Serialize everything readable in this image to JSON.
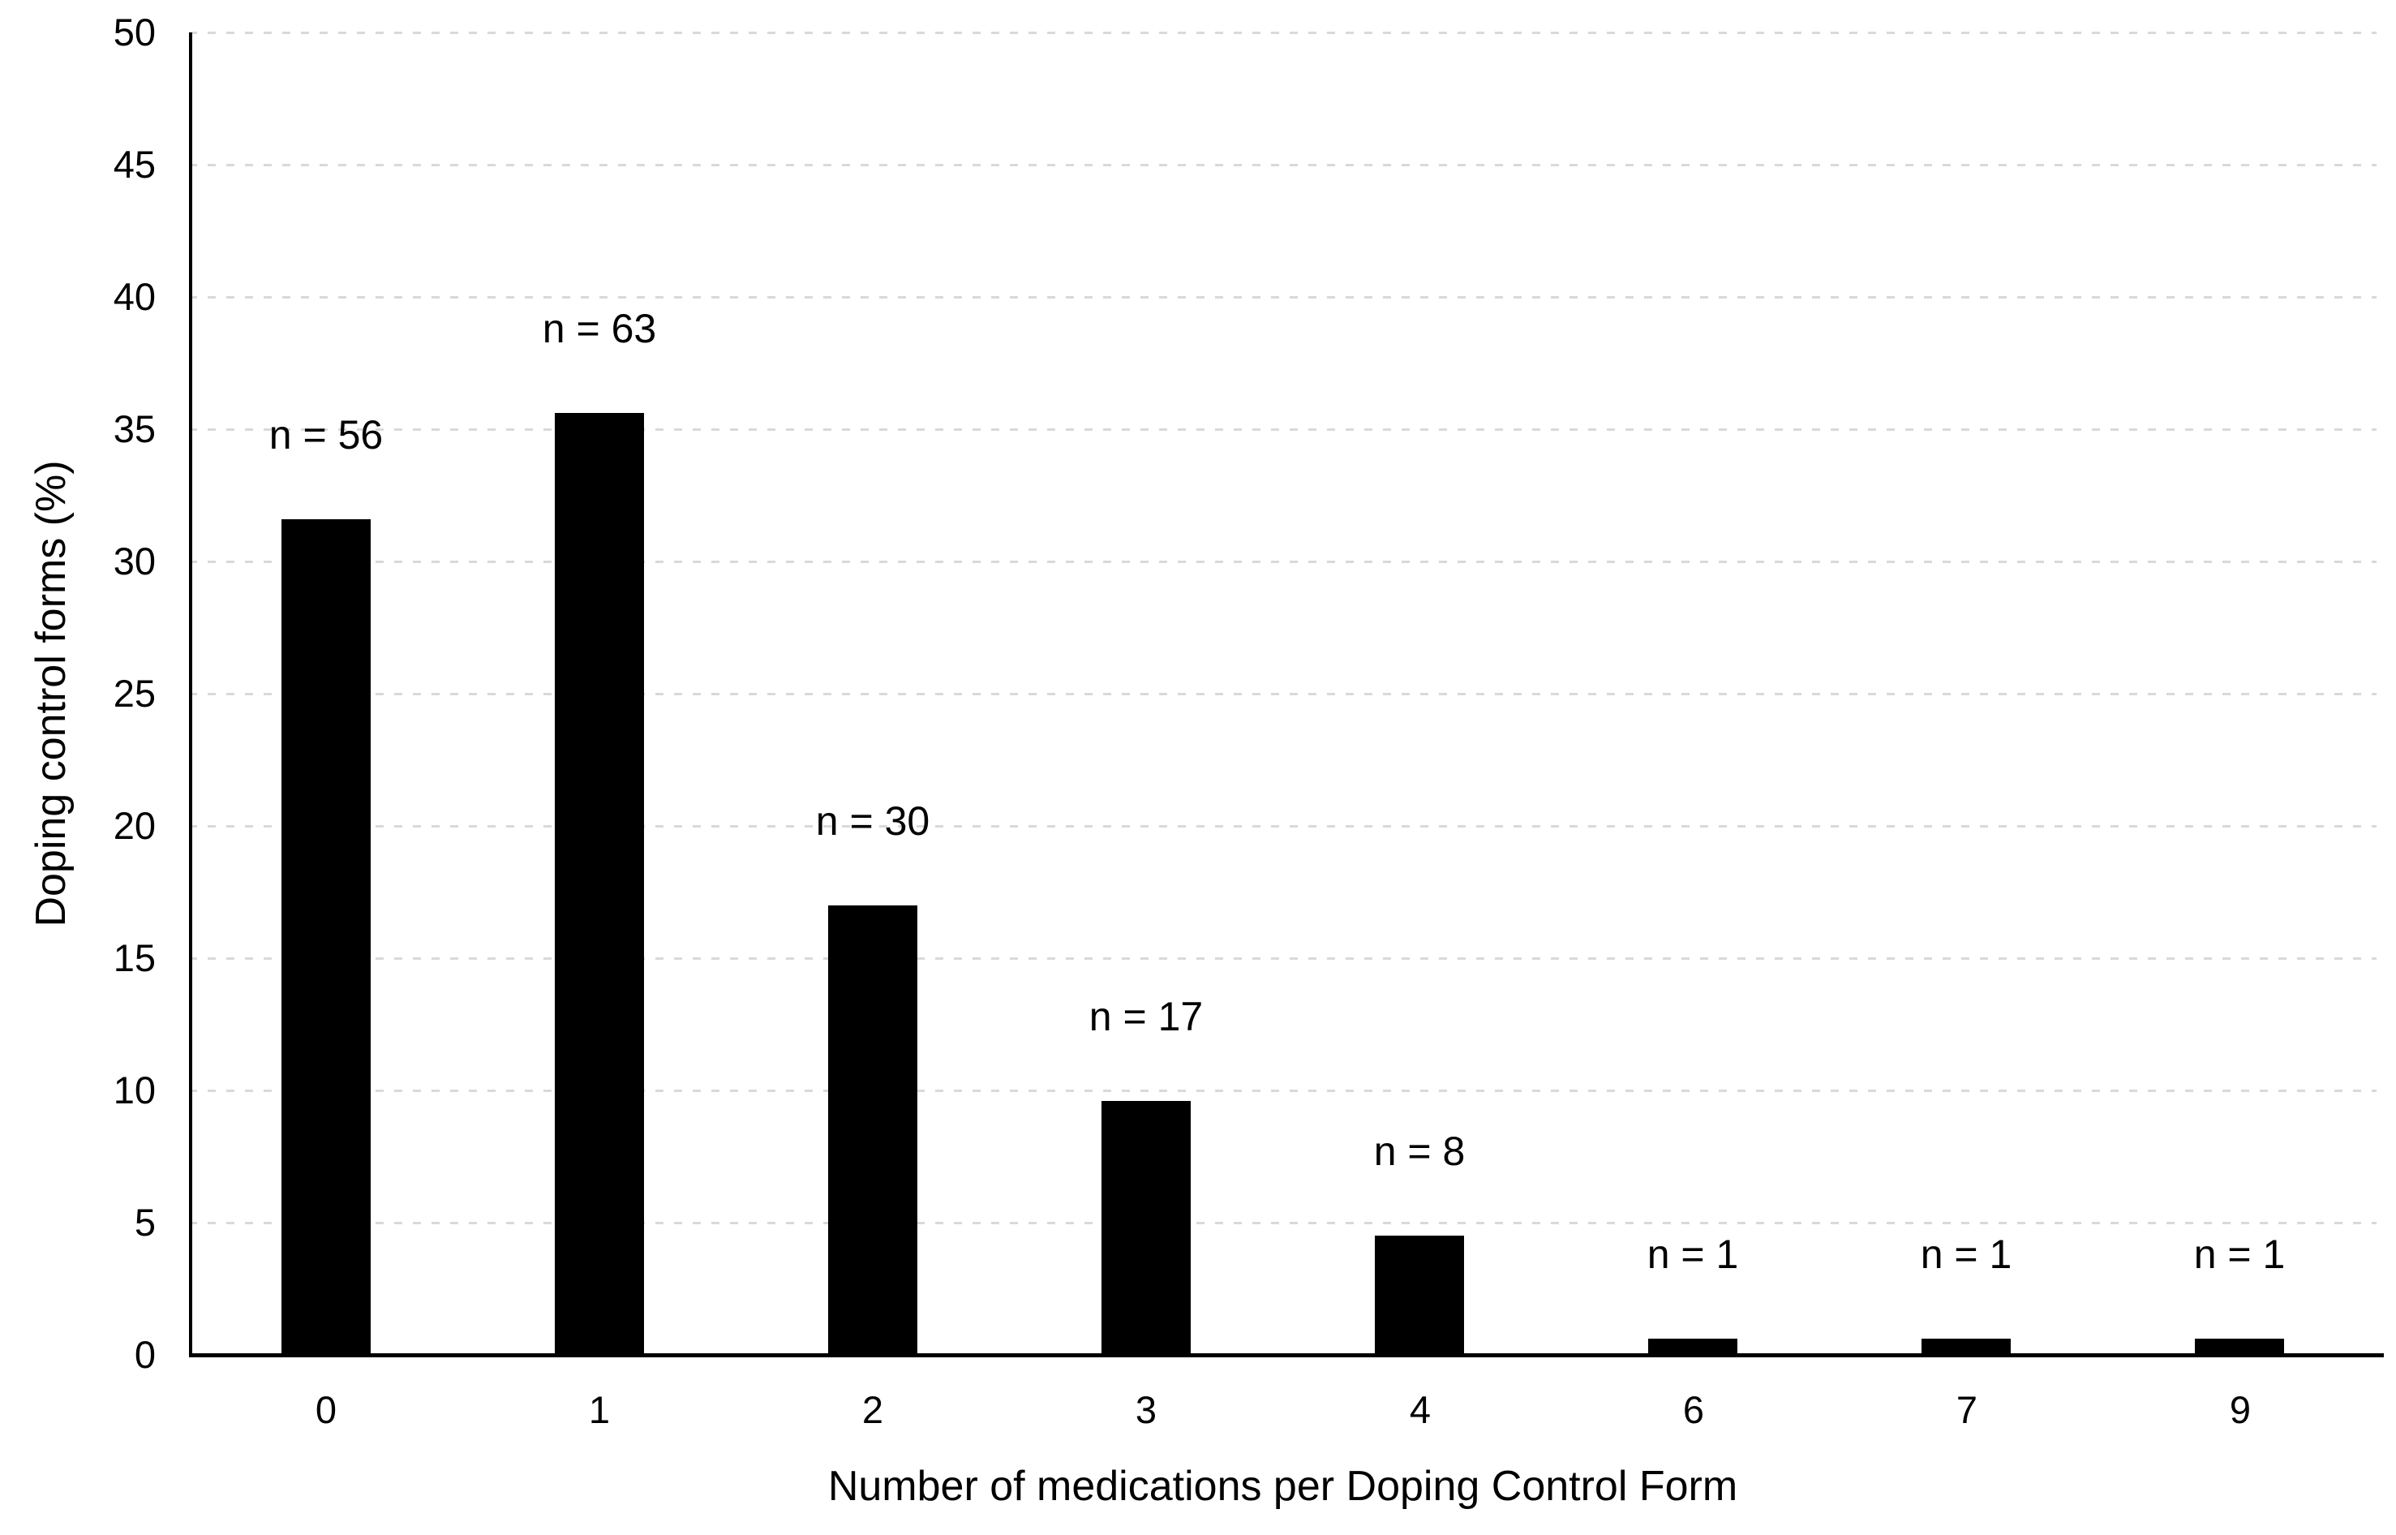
{
  "chart_data": {
    "type": "bar",
    "title": "",
    "categories": [
      "0",
      "1",
      "2",
      "3",
      "4",
      "6",
      "7",
      "9"
    ],
    "counts": [
      56,
      63,
      30,
      17,
      8,
      1,
      1,
      1
    ],
    "series": [
      {
        "name": "Doping control forms (%)",
        "values": [
          31.6,
          35.6,
          17.0,
          9.6,
          4.5,
          0.6,
          0.6,
          0.6
        ]
      }
    ],
    "bar_labels": [
      "n = 56",
      "n = 63",
      "n = 30",
      "n = 17",
      "n = 8",
      "n = 1",
      "n = 1",
      "n = 1"
    ],
    "xlabel": "Number of medications per Doping Control Form",
    "ylabel": "Doping control forms (%)",
    "ylim": [
      0,
      50
    ],
    "ytick_step": 5,
    "yticks": [
      "0",
      "5",
      "10",
      "15",
      "20",
      "25",
      "30",
      "35",
      "40",
      "45",
      "50"
    ],
    "grid": "horizontal-dashed",
    "legend_position": "none",
    "colors": {
      "bar": "#000000",
      "gridline": "#d9d9d9",
      "axis": "#000000",
      "text": "#000000",
      "background": "#ffffff"
    }
  }
}
